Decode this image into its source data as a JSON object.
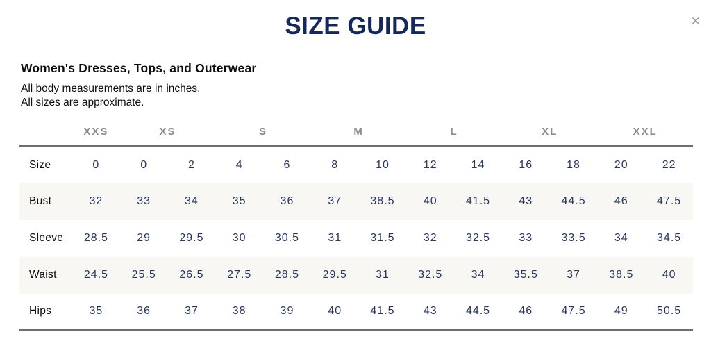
{
  "modal": {
    "title": "SIZE GUIDE",
    "close_glyph": "✕"
  },
  "section": {
    "heading": "Women's Dresses, Tops, and Outerwear",
    "note_line1": "All body measurements are in inches.",
    "note_line2": "All sizes are approximate."
  },
  "colors": {
    "title_navy": "#14285a",
    "value_navy": "#26365c",
    "group_header_gray": "#8c8c8c",
    "rule_gray": "#6e6e6e",
    "stripe": "#f8f7f4",
    "close_gray": "#9b9b9b"
  },
  "table": {
    "size_groups": [
      {
        "label": "XXS",
        "span": 1
      },
      {
        "label": "XS",
        "span": 2
      },
      {
        "label": "S",
        "span": 2
      },
      {
        "label": "M",
        "span": 2
      },
      {
        "label": "L",
        "span": 2
      },
      {
        "label": "XL",
        "span": 2
      },
      {
        "label": "XXL",
        "span": 2
      }
    ],
    "rows": [
      {
        "label": "Size",
        "values": [
          "0",
          "0",
          "2",
          "4",
          "6",
          "8",
          "10",
          "12",
          "14",
          "16",
          "18",
          "20",
          "22"
        ]
      },
      {
        "label": "Bust",
        "values": [
          "32",
          "33",
          "34",
          "35",
          "36",
          "37",
          "38.5",
          "40",
          "41.5",
          "43",
          "44.5",
          "46",
          "47.5"
        ]
      },
      {
        "label": "Sleeve",
        "values": [
          "28.5",
          "29",
          "29.5",
          "30",
          "30.5",
          "31",
          "31.5",
          "32",
          "32.5",
          "33",
          "33.5",
          "34",
          "34.5"
        ]
      },
      {
        "label": "Waist",
        "values": [
          "24.5",
          "25.5",
          "26.5",
          "27.5",
          "28.5",
          "29.5",
          "31",
          "32.5",
          "34",
          "35.5",
          "37",
          "38.5",
          "40"
        ]
      },
      {
        "label": "Hips",
        "values": [
          "35",
          "36",
          "37",
          "38",
          "39",
          "40",
          "41.5",
          "43",
          "44.5",
          "46",
          "47.5",
          "49",
          "50.5"
        ]
      }
    ]
  }
}
